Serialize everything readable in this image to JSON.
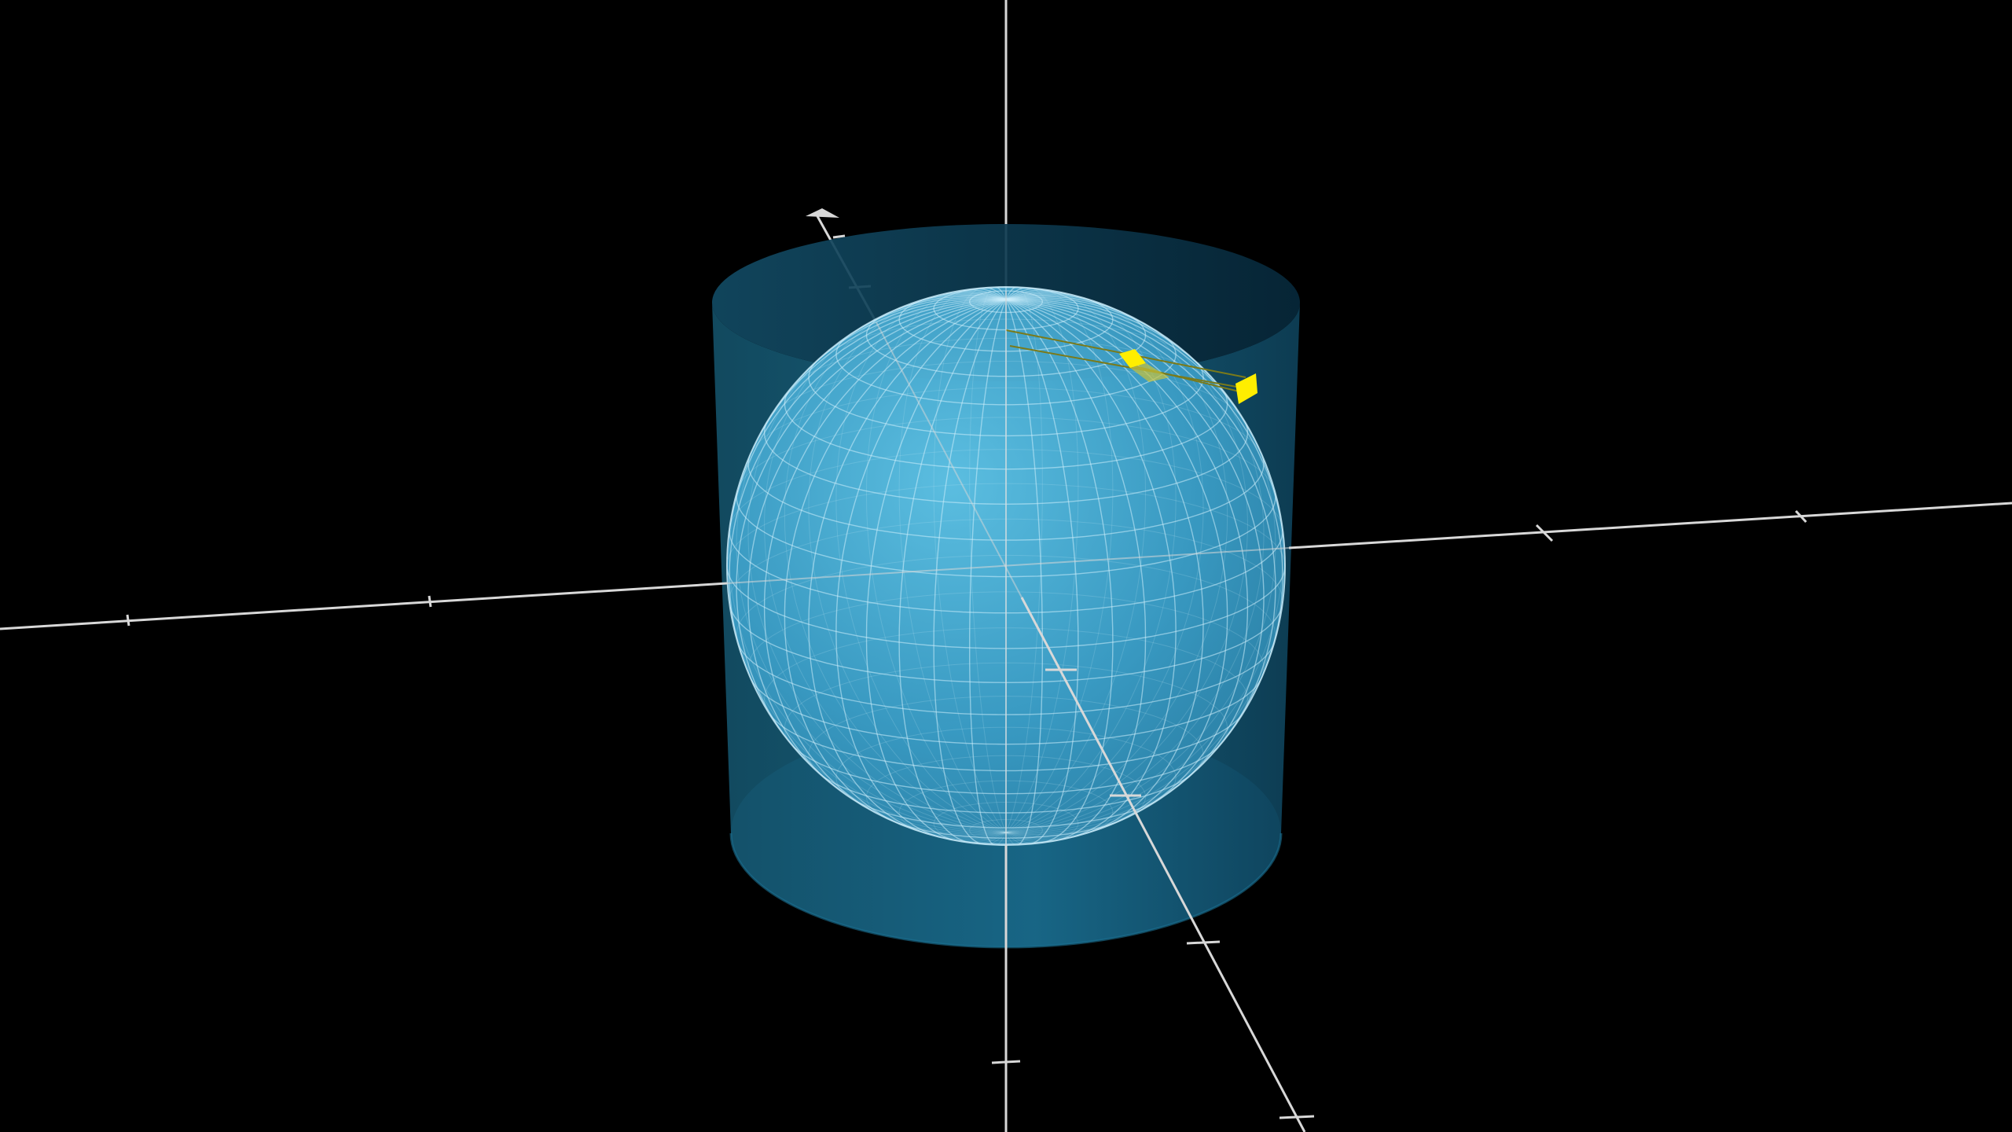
{
  "scene": {
    "background": "#000000",
    "objects": [
      "cylinder",
      "sphere",
      "x-axis",
      "y-axis",
      "z-axis",
      "surface-element-patch",
      "projected-element-patch"
    ]
  },
  "colors": {
    "background": "#000000",
    "cylinder_fill": "#1a6f91",
    "cylinder_top": "#0e3b52",
    "cylinder_bottom": "#0b3246",
    "sphere_fill": "#4aaed6",
    "sphere_mesh": "#cdeffc",
    "axis": "#d8d8d8",
    "patch": "#ffee00",
    "patch_outline": "#7a7a1a"
  },
  "sphere_mesh": {
    "latitude_lines": 24,
    "longitude_lines": 48
  }
}
